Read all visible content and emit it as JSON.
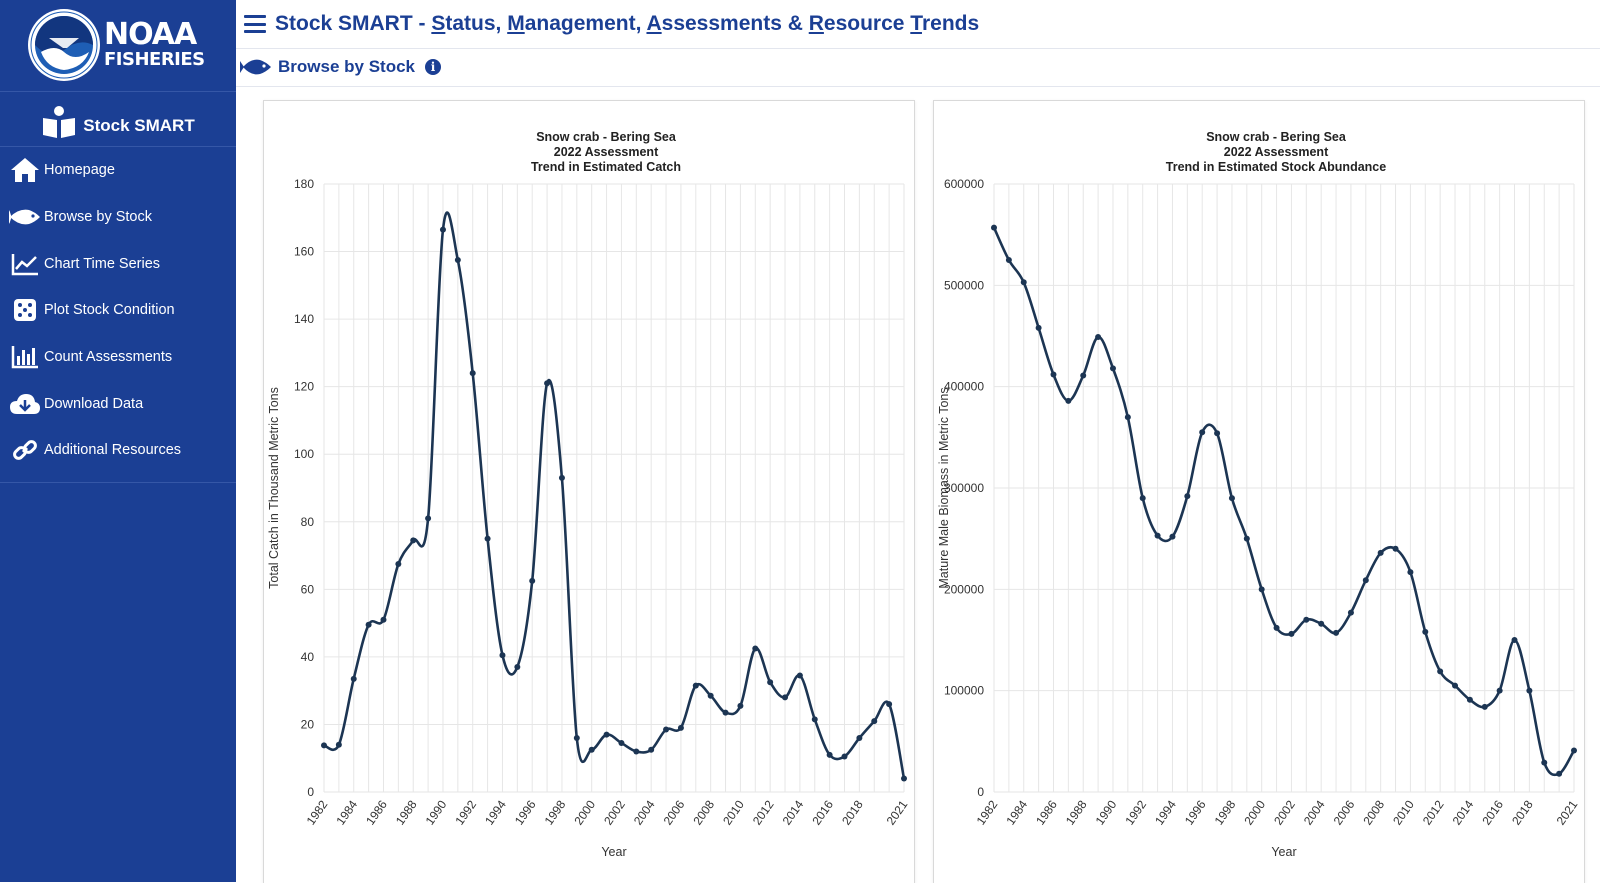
{
  "logo": {
    "line1": "NOAA",
    "line2": "FISHERIES",
    "icon": "noaa-seal-icon"
  },
  "sidebar": {
    "brand": "Stock SMART",
    "items": [
      {
        "label": "Homepage",
        "icon": "home-icon"
      },
      {
        "label": "Browse by Stock",
        "icon": "fish-icon"
      },
      {
        "label": "Chart Time Series",
        "icon": "line-chart-icon"
      },
      {
        "label": "Plot Stock Condition",
        "icon": "dice-icon"
      },
      {
        "label": "Count Assessments",
        "icon": "bar-chart-icon"
      },
      {
        "label": "Download Data",
        "icon": "cloud-download-icon"
      },
      {
        "label": "Additional Resources",
        "icon": "link-icon"
      }
    ]
  },
  "header": {
    "title_parts": [
      {
        "text": "Stock SMART - ",
        "u": false
      },
      {
        "text": "S",
        "u": true
      },
      {
        "text": "tatus, ",
        "u": false
      },
      {
        "text": "M",
        "u": true
      },
      {
        "text": "anagement, ",
        "u": false
      },
      {
        "text": "A",
        "u": true
      },
      {
        "text": "ssessments & ",
        "u": false
      },
      {
        "text": "R",
        "u": true
      },
      {
        "text": "esource ",
        "u": false
      },
      {
        "text": "T",
        "u": true
      },
      {
        "text": "rends",
        "u": false
      }
    ],
    "page_title": "Browse by Stock",
    "info_glyph": "i"
  },
  "colors": {
    "sidebar_bg": "#1b3f94",
    "line": "#1c3553",
    "grid": "#e6e6e6"
  },
  "chart_data": [
    {
      "type": "line",
      "title": [
        "Snow crab - Bering Sea",
        "2022 Assessment",
        "Trend in Estimated Catch"
      ],
      "xlabel": "Year",
      "ylabel": "Total Catch in Thousand Metric Tons",
      "ylim": [
        0,
        180
      ],
      "yticks": [
        0,
        20,
        40,
        60,
        80,
        100,
        120,
        140,
        160,
        180
      ],
      "xtick_labels": [
        "1982",
        "1984",
        "1986",
        "1988",
        "1990",
        "1992",
        "1994",
        "1996",
        "1998",
        "2000",
        "2002",
        "2004",
        "2006",
        "2008",
        "2010",
        "2012",
        "2014",
        "2016",
        "2018",
        "2021"
      ],
      "x": [
        1982,
        1983,
        1984,
        1985,
        1986,
        1987,
        1988,
        1989,
        1990,
        1991,
        1992,
        1993,
        1994,
        1995,
        1996,
        1997,
        1998,
        1999,
        2000,
        2001,
        2002,
        2003,
        2004,
        2005,
        2006,
        2007,
        2008,
        2009,
        2010,
        2011,
        2012,
        2013,
        2014,
        2015,
        2016,
        2017,
        2018,
        2019,
        2020,
        2021
      ],
      "values": [
        13.8,
        14,
        33.5,
        49.5,
        51,
        67.5,
        74.5,
        81,
        166.5,
        157.5,
        124,
        75,
        40.5,
        37,
        62.5,
        121,
        93,
        16,
        12.5,
        17,
        14.5,
        12,
        12.5,
        18.5,
        19,
        31.5,
        28.5,
        23.5,
        25.5,
        42.5,
        32.5,
        28,
        34.5,
        21.5,
        11,
        10.5,
        16,
        21,
        26,
        4
      ]
    },
    {
      "type": "line",
      "title": [
        "Snow crab - Bering Sea",
        "2022 Assessment",
        "Trend in Estimated Stock Abundance"
      ],
      "xlabel": "Year",
      "ylabel": "Mature Male Biomass in Metric Tons",
      "ylim": [
        0,
        600000
      ],
      "yticks": [
        0,
        100000,
        200000,
        300000,
        400000,
        500000,
        600000
      ],
      "xtick_labels": [
        "1982",
        "1984",
        "1986",
        "1988",
        "1990",
        "1992",
        "1994",
        "1996",
        "1998",
        "2000",
        "2002",
        "2004",
        "2006",
        "2008",
        "2010",
        "2012",
        "2014",
        "2016",
        "2018",
        "2021"
      ],
      "x": [
        1982,
        1983,
        1984,
        1985,
        1986,
        1987,
        1988,
        1989,
        1990,
        1991,
        1992,
        1993,
        1994,
        1995,
        1996,
        1997,
        1998,
        1999,
        2000,
        2001,
        2002,
        2003,
        2004,
        2005,
        2006,
        2007,
        2008,
        2009,
        2010,
        2011,
        2012,
        2013,
        2014,
        2015,
        2016,
        2017,
        2018,
        2019,
        2020,
        2021
      ],
      "values": [
        557000,
        525000,
        503000,
        458000,
        412000,
        386000,
        411000,
        449000,
        418000,
        370000,
        290000,
        253000,
        252000,
        292000,
        355000,
        354000,
        290000,
        250000,
        200000,
        162000,
        156000,
        170000,
        166000,
        157000,
        177000,
        209000,
        236000,
        240000,
        217000,
        158000,
        119000,
        105000,
        91000,
        84000,
        100000,
        150000,
        100000,
        29000,
        18000,
        41000
      ]
    }
  ]
}
